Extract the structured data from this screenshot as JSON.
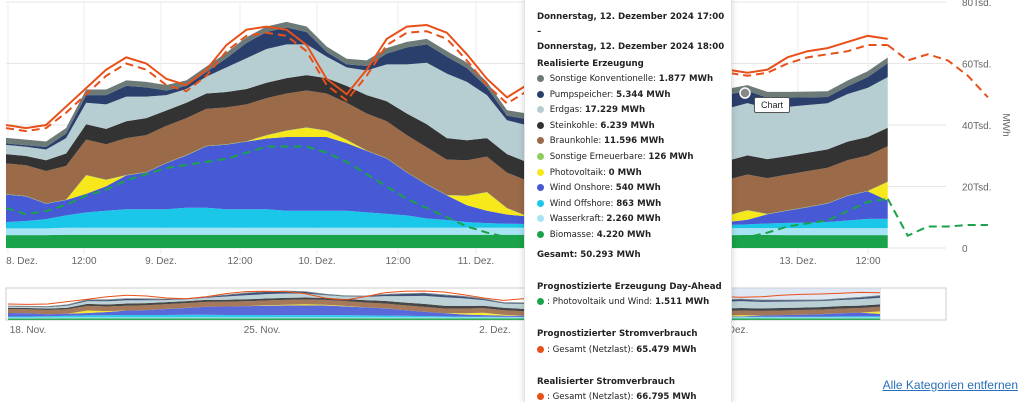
{
  "chart_data": {
    "type": "area",
    "x": [
      "8. Dez. 00:00",
      "8. Dez. 03:00",
      "8. Dez. 06:00",
      "8. Dez. 09:00",
      "8. Dez. 12:00",
      "8. Dez. 15:00",
      "8. Dez. 18:00",
      "8. Dez. 21:00",
      "9. Dez. 00:00",
      "9. Dez. 03:00",
      "9. Dez. 06:00",
      "9. Dez. 09:00",
      "9. Dez. 12:00",
      "9. Dez. 15:00",
      "9. Dez. 18:00",
      "9. Dez. 21:00",
      "10. Dez. 00:00",
      "10. Dez. 03:00",
      "10. Dez. 06:00",
      "10. Dez. 09:00",
      "10. Dez. 12:00",
      "10. Dez. 15:00",
      "10. Dez. 18:00",
      "10. Dez. 21:00",
      "11. Dez. 00:00",
      "11. Dez. 03:00",
      "11. Dez. 06:00",
      "11. Dez. 09:00",
      "11. Dez. 12:00",
      "11. Dez. 15:00",
      "11. Dez. 18:00",
      "11. Dez. 21:00",
      "12. Dez. 00:00",
      "12. Dez. 03:00",
      "12. Dez. 06:00",
      "12. Dez. 09:00",
      "12. Dez. 12:00",
      "12. Dez. 15:00",
      "12. Dez. 18:00",
      "12. Dez. 21:00",
      "13. Dez. 00:00",
      "13. Dez. 03:00",
      "13. Dez. 06:00",
      "13. Dez. 09:00",
      "13. Dez. 12:00"
    ],
    "x_tick_labels": [
      "8. Dez.",
      "12:00",
      "9. Dez.",
      "12:00",
      "10. Dez.",
      "12:00",
      "11. Dez.",
      "13. Dez.",
      "12:00"
    ],
    "y_tick_labels": [
      "0",
      "20Tsd.",
      "40Tsd.",
      "60Tsd.",
      "80Tsd."
    ],
    "ylabel": "MWh",
    "ylim": [
      0,
      80000
    ],
    "series": [
      {
        "name": "Biomasse",
        "color": "#1aa34a",
        "values": [
          4200,
          4200,
          4200,
          4300,
          4300,
          4300,
          4300,
          4300,
          4300,
          4300,
          4300,
          4300,
          4300,
          4300,
          4300,
          4300,
          4300,
          4300,
          4300,
          4300,
          4300,
          4300,
          4300,
          4300,
          4300,
          4300,
          4300,
          4300,
          4300,
          4300,
          4300,
          4300,
          4300,
          4200,
          4200,
          4200,
          4200,
          4220,
          4220,
          4200,
          4200,
          4200,
          4200,
          4200,
          4200
        ]
      },
      {
        "name": "Wasserkraft",
        "color": "#a6e3f4",
        "values": [
          2200,
          2200,
          2200,
          2300,
          2300,
          2300,
          2300,
          2300,
          2300,
          2300,
          2300,
          2300,
          2300,
          2300,
          2300,
          2300,
          2300,
          2300,
          2300,
          2300,
          2300,
          2300,
          2300,
          2300,
          2300,
          2300,
          2300,
          2300,
          2300,
          2300,
          2300,
          2300,
          2300,
          2260,
          2260,
          2260,
          2260,
          2260,
          2260,
          2260,
          2260,
          2260,
          2260,
          2260,
          2260
        ]
      },
      {
        "name": "Wind Offshore",
        "color": "#1bc7e8",
        "values": [
          2000,
          2400,
          3000,
          4000,
          5000,
          5500,
          6000,
          6000,
          6000,
          6500,
          6500,
          6000,
          6000,
          6000,
          5500,
          5500,
          5500,
          5500,
          5000,
          4500,
          4000,
          3000,
          2500,
          1800,
          1500,
          1300,
          1200,
          1000,
          1000,
          900,
          900,
          900,
          900,
          863,
          863,
          900,
          1000,
          1200,
          1500,
          1700,
          1800,
          2000,
          2500,
          3000,
          3000
        ]
      },
      {
        "name": "Wind Onshore",
        "color": "#4859d6",
        "values": [
          9000,
          8000,
          5000,
          5000,
          6000,
          8000,
          11000,
          12000,
          15000,
          17000,
          20000,
          21000,
          22000,
          23000,
          24000,
          24000,
          24000,
          22000,
          20000,
          18000,
          14000,
          11000,
          8000,
          5500,
          4000,
          3000,
          2500,
          2000,
          1500,
          1000,
          800,
          600,
          540,
          540,
          540,
          600,
          1000,
          1500,
          3000,
          4000,
          5000,
          6000,
          8000,
          9000,
          6000
        ]
      },
      {
        "name": "Photovoltaik",
        "color": "#f7e81b",
        "values": [
          0,
          0,
          0,
          0,
          6000,
          2000,
          0,
          0,
          0,
          0,
          0,
          0,
          0,
          1000,
          2000,
          3000,
          2000,
          1000,
          0,
          0,
          0,
          0,
          0,
          3000,
          6000,
          2000,
          0,
          0,
          0,
          0,
          0,
          0,
          0,
          0,
          0,
          0,
          2000,
          3000,
          0,
          0,
          0,
          0,
          0,
          0,
          6000
        ]
      },
      {
        "name": "Sonstige Erneuerbare",
        "color": "#8fce5a",
        "values": [
          126,
          126,
          126,
          126,
          126,
          126,
          126,
          126,
          126,
          126,
          126,
          126,
          126,
          126,
          126,
          126,
          126,
          126,
          126,
          126,
          126,
          126,
          126,
          126,
          126,
          126,
          126,
          126,
          126,
          126,
          126,
          126,
          126,
          126,
          126,
          126,
          126,
          126,
          126,
          126,
          126,
          126,
          126,
          126,
          126
        ]
      },
      {
        "name": "Braunkohle",
        "color": "#9b6a48",
        "values": [
          10000,
          10000,
          10500,
          11000,
          11500,
          11500,
          12000,
          12000,
          12000,
          12000,
          12000,
          12000,
          12000,
          12000,
          12000,
          12000,
          12000,
          12000,
          12000,
          12000,
          12000,
          12000,
          11500,
          11500,
          11500,
          11500,
          11500,
          11500,
          11600,
          11600,
          11600,
          11600,
          11596,
          11600,
          11600,
          11600,
          11600,
          11600,
          11600,
          11600,
          11600,
          11500,
          11500,
          11500,
          11500
        ]
      },
      {
        "name": "Steinkohle",
        "color": "#333333",
        "values": [
          3000,
          3000,
          3500,
          4000,
          5000,
          5000,
          5500,
          5500,
          5000,
          5000,
          5000,
          5000,
          5000,
          5000,
          5000,
          5000,
          5000,
          5500,
          6000,
          6500,
          7000,
          7500,
          7000,
          6500,
          6000,
          6000,
          6000,
          6000,
          6200,
          6200,
          6239,
          6239,
          6239,
          6239,
          6239,
          6200,
          6200,
          6200,
          6200,
          6000,
          6000,
          6000,
          6000,
          6000,
          6000
        ]
      },
      {
        "name": "Erdgas",
        "color": "#b6cdd1",
        "values": [
          3000,
          3000,
          3500,
          5000,
          7000,
          8000,
          8000,
          7000,
          5000,
          4500,
          5500,
          8000,
          10000,
          11000,
          11000,
          10000,
          7000,
          6000,
          8000,
          12000,
          16000,
          20000,
          21000,
          19000,
          14000,
          11000,
          12000,
          15000,
          17000,
          17500,
          17229,
          17229,
          17229,
          17229,
          17229,
          17000,
          17000,
          17000,
          16500,
          16000,
          15500,
          15000,
          15500,
          16000,
          16500
        ]
      },
      {
        "name": "Pumpspeicher",
        "color": "#2a3f6b",
        "values": [
          500,
          500,
          800,
          1500,
          2500,
          3000,
          3500,
          3000,
          1500,
          1000,
          1500,
          3000,
          5000,
          5500,
          5500,
          4000,
          1500,
          1000,
          1500,
          3500,
          5500,
          6000,
          5500,
          4500,
          2500,
          1500,
          2000,
          3500,
          5000,
          5300,
          5344,
          5344,
          5344,
          5344,
          5344,
          5000,
          4500,
          4000,
          3500,
          3000,
          2500,
          2000,
          2500,
          3500,
          4500
        ]
      },
      {
        "name": "Sonstige Konventionelle",
        "color": "#6c7a78",
        "values": [
          1800,
          1800,
          1800,
          1800,
          1800,
          1800,
          1800,
          1800,
          1800,
          1800,
          1800,
          1800,
          1800,
          1800,
          1800,
          1800,
          1800,
          1800,
          1800,
          1800,
          1800,
          1800,
          1800,
          1800,
          1800,
          1800,
          1800,
          1877,
          1877,
          1877,
          1877,
          1877,
          1877,
          1877,
          1877,
          1877,
          1877,
          1877,
          1877,
          1877,
          1877,
          1877,
          1877,
          1877,
          1877
        ]
      }
    ],
    "line_series": [
      {
        "name": "Gesamt (Netzlast) Realisierter Stromverbrauch",
        "color": "#e8501a",
        "dash": "solid",
        "values": [
          40000,
          39000,
          40000,
          46000,
          52000,
          58000,
          62000,
          60000,
          55000,
          53000,
          58000,
          66000,
          71000,
          72000,
          71000,
          66000,
          55000,
          50000,
          58000,
          68000,
          72000,
          72500,
          70000,
          63000,
          55000,
          49000,
          53000,
          63000,
          67000,
          66795,
          66795,
          66500,
          66000,
          65500,
          64500,
          62000,
          58000,
          57000,
          58000,
          62000,
          64000,
          65000,
          67000,
          69000,
          68000
        ]
      },
      {
        "name": "Gesamt (Netzlast) Prognostizierter Stromverbrauch",
        "color": "#e8501a",
        "dash": "dashed",
        "values": [
          39000,
          38000,
          39000,
          44000,
          50000,
          56000,
          60000,
          58000,
          53000,
          51000,
          56000,
          64000,
          69000,
          70000,
          69000,
          64000,
          53000,
          48000,
          56000,
          66000,
          70000,
          70500,
          68000,
          61000,
          53000,
          47000,
          51000,
          61000,
          65000,
          65479,
          65479,
          65000,
          64500,
          64000,
          63000,
          60000,
          57000,
          56000,
          57000,
          60000,
          62000,
          63000,
          64000,
          66000,
          66000
        ]
      },
      {
        "name": "Photovoltaik und Wind",
        "color": "#1aa34a",
        "dash": "dashed",
        "values": [
          13000,
          11000,
          12000,
          14000,
          17000,
          19000,
          22000,
          24000,
          26000,
          27000,
          28000,
          29000,
          31000,
          33000,
          33000,
          33000,
          31000,
          28000,
          24000,
          20000,
          16000,
          13000,
          10000,
          7000,
          5000,
          3500,
          2500,
          2000,
          1600,
          1511,
          1511,
          1500,
          1500,
          1500,
          1600,
          1800,
          2500,
          3500,
          5000,
          7000,
          8000,
          9000,
          12000,
          15000,
          16000
        ]
      }
    ],
    "forecast_tail": [
      61000,
      63000,
      61000,
      56000,
      49000
    ],
    "wind_forecast_tail": [
      4000,
      7000,
      7000,
      7500,
      7500
    ],
    "navigator_tick_labels": [
      "18. Nov.",
      "25. Nov.",
      "2. Dez.",
      "Dez."
    ]
  },
  "tooltip": {
    "time_line1": "Donnerstag, 12. Dezember 2024 17:00 –",
    "time_line2": "Donnerstag, 12. Dezember 2024 18:00",
    "section_generation": "Realisierte Erzeugung",
    "generation_rows": [
      {
        "label": "Sonstige Konventionelle",
        "value": "1.877 MWh",
        "color": "#6c7a78"
      },
      {
        "label": "Pumpspeicher",
        "value": "5.344 MWh",
        "color": "#2a3f6b"
      },
      {
        "label": "Erdgas",
        "value": "17.229 MWh",
        "color": "#b6cdd1"
      },
      {
        "label": "Steinkohle",
        "value": "6.239 MWh",
        "color": "#333333"
      },
      {
        "label": "Braunkohle",
        "value": "11.596 MWh",
        "color": "#9b6a48"
      },
      {
        "label": "Sonstige Erneuerbare",
        "value": "126 MWh",
        "color": "#8fce5a"
      },
      {
        "label": "Photovoltaik",
        "value": "0 MWh",
        "color": "#f7e81b"
      },
      {
        "label": "Wind Onshore",
        "value": "540 MWh",
        "color": "#4859d6"
      },
      {
        "label": "Wind Offshore",
        "value": "863 MWh",
        "color": "#1bc7e8"
      },
      {
        "label": "Wasserkraft",
        "value": "2.260 MWh",
        "color": "#a6e3f4"
      },
      {
        "label": "Biomasse",
        "value": "4.220 MWh",
        "color": "#1aa34a"
      }
    ],
    "total_label": "Gesamt",
    "total_value": "50.293 MWh",
    "section_dayahead": "Prognostizierte Erzeugung Day-Ahead",
    "dayahead_row": {
      "label": "Photovoltaik und Wind",
      "value": "1.511 MWh",
      "color": "#1aa34a"
    },
    "section_forecast_consumption": "Prognostizierter Stromverbrauch",
    "forecast_consumption_row": {
      "label": "Gesamt (Netzlast)",
      "value": "65.479 MWh",
      "color": "#e8501a"
    },
    "section_actual_consumption": "Realisierter Stromverbrauch",
    "actual_consumption_row": {
      "label": "Gesamt (Netzlast)",
      "value": "66.795 MWh",
      "color": "#e8501a"
    }
  },
  "chart_label": "Chart",
  "remove_link": "Alle Kategorien entfernen"
}
